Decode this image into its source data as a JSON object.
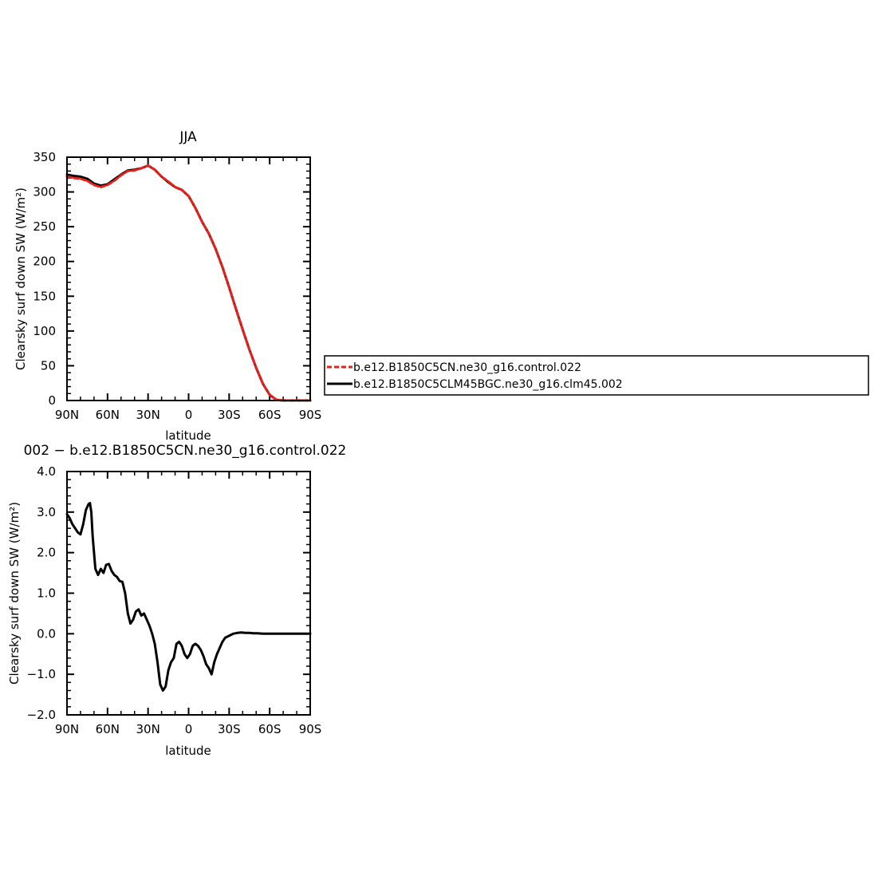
{
  "colors": {
    "control": "#e8211c",
    "clm45": "#000000",
    "axis": "#000000",
    "background": "#ffffff"
  },
  "legend": {
    "placement": "right of top panel",
    "entries": [
      {
        "label": "b.e12.B1850C5CN.ne30_g16.control.022",
        "color": "#e8211c",
        "style": "dashed"
      },
      {
        "label": "b.e12.B1850C5CLM45BGC.ne30_g16.clm45.002",
        "color": "#000000",
        "style": "solid"
      }
    ]
  },
  "chart_data": [
    {
      "type": "line",
      "title": "JJA",
      "xlabel": "latitude",
      "ylabel": "Clearsky surf down SW (W/m²)",
      "xlim": [
        90,
        -90
      ],
      "ylim": [
        0,
        350
      ],
      "x_ticks": [
        90,
        60,
        30,
        0,
        -30,
        -60,
        -90
      ],
      "x_tick_labels": [
        "90N",
        "60N",
        "30N",
        "0",
        "30S",
        "60S",
        "90S"
      ],
      "y_ticks": [
        0,
        50,
        100,
        150,
        200,
        250,
        300,
        350
      ],
      "y_tick_labels": [
        "0",
        "50",
        "100",
        "150",
        "200",
        "250",
        "300",
        "350"
      ],
      "series": [
        {
          "name": "b.e12.B1850C5CN.ne30_g16.control.022",
          "x": [
            90,
            85,
            80,
            75,
            70,
            65,
            60,
            55,
            50,
            45,
            40,
            35,
            30,
            25,
            20,
            15,
            10,
            5,
            0,
            -5,
            -10,
            -15,
            -20,
            -25,
            -30,
            -35,
            -40,
            -45,
            -50,
            -55,
            -60,
            -65,
            -70,
            -75,
            -80,
            -85,
            -90
          ],
          "y": [
            322,
            320,
            319,
            316,
            310,
            307,
            310,
            316,
            324,
            330,
            331,
            334,
            338,
            332,
            322,
            315,
            307,
            303,
            294,
            277,
            257,
            240,
            218,
            192,
            163,
            132,
            102,
            73,
            47,
            24,
            8,
            1,
            0,
            0,
            0,
            0,
            0
          ]
        },
        {
          "name": "b.e12.B1850C5CLM45BGC.ne30_g16.clm45.002",
          "x": [
            90,
            85,
            80,
            75,
            70,
            65,
            60,
            55,
            50,
            45,
            40,
            35,
            30,
            25,
            20,
            15,
            10,
            5,
            0,
            -5,
            -10,
            -15,
            -20,
            -25,
            -30,
            -35,
            -40,
            -45,
            -50,
            -55,
            -60,
            -65,
            -70,
            -75,
            -80,
            -85,
            -90
          ],
          "y": [
            325,
            323,
            322,
            319,
            312,
            309,
            311,
            318,
            325,
            331,
            332,
            334,
            338,
            332,
            322,
            314,
            307,
            303,
            294,
            277,
            257,
            240,
            218,
            192,
            163,
            132,
            102,
            73,
            47,
            24,
            8,
            1,
            0,
            0,
            0,
            0,
            0
          ]
        }
      ]
    },
    {
      "type": "line",
      "title": "002 − b.e12.B1850C5CN.ne30_g16.control.022",
      "xlabel": "latitude",
      "ylabel": "Clearsky surf down SW (W/m²)",
      "xlim": [
        90,
        -90
      ],
      "ylim": [
        -2.0,
        4.0
      ],
      "x_ticks": [
        90,
        60,
        30,
        0,
        -30,
        -60,
        -90
      ],
      "x_tick_labels": [
        "90N",
        "60N",
        "30N",
        "0",
        "30S",
        "60S",
        "90S"
      ],
      "y_ticks": [
        -2,
        -1,
        0,
        1,
        2,
        3,
        4
      ],
      "y_tick_labels": [
        "−2.0",
        "−1.0",
        "0.0",
        "1.0",
        "2.0",
        "3.0",
        "4.0"
      ],
      "series": [
        {
          "x": [
            90,
            88,
            86,
            84,
            82,
            80,
            78,
            76,
            74,
            73,
            72,
            71,
            70,
            69,
            67,
            65,
            63,
            61,
            59,
            57,
            55,
            53,
            51,
            49,
            47,
            45,
            43,
            41,
            39,
            37,
            35,
            33,
            31,
            29,
            27,
            25,
            23,
            21,
            19,
            17,
            15,
            13,
            11,
            9,
            7,
            5,
            3,
            1,
            -1,
            -3,
            -5,
            -7,
            -9,
            -11,
            -13,
            -15,
            -17,
            -19,
            -21,
            -23,
            -25,
            -27,
            -30,
            -33,
            -36,
            -39,
            -42,
            -45,
            -48,
            -51,
            -55,
            -60,
            -65,
            -70,
            -75,
            -80,
            -85,
            -90
          ],
          "y": [
            2.95,
            2.85,
            2.7,
            2.6,
            2.5,
            2.45,
            2.7,
            3.05,
            3.2,
            3.22,
            3.0,
            2.4,
            2.0,
            1.6,
            1.45,
            1.6,
            1.5,
            1.7,
            1.72,
            1.55,
            1.45,
            1.4,
            1.3,
            1.28,
            1.0,
            0.5,
            0.25,
            0.35,
            0.55,
            0.6,
            0.45,
            0.5,
            0.35,
            0.2,
            0.0,
            -0.25,
            -0.7,
            -1.25,
            -1.4,
            -1.3,
            -0.9,
            -0.7,
            -0.6,
            -0.25,
            -0.2,
            -0.3,
            -0.5,
            -0.6,
            -0.5,
            -0.3,
            -0.25,
            -0.3,
            -0.4,
            -0.55,
            -0.75,
            -0.85,
            -1.0,
            -0.7,
            -0.5,
            -0.35,
            -0.2,
            -0.1,
            -0.05,
            0.0,
            0.02,
            0.03,
            0.02,
            0.02,
            0.01,
            0.01,
            0.0,
            0.0,
            0.0,
            0.0,
            0.0,
            0.0,
            0.0,
            0.0
          ]
        }
      ]
    }
  ]
}
